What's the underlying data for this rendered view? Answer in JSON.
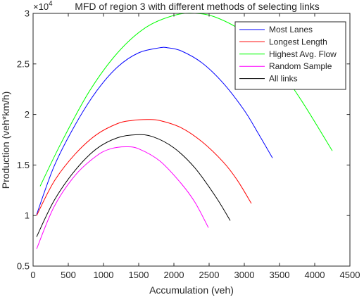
{
  "chart_data": {
    "type": "line",
    "title": "MFD of region 3 with different methods of selecting links",
    "xlabel": "Accumulation (veh)",
    "ylabel": "Production (veh*km/h)",
    "y_multiplier_label": "×10",
    "y_multiplier_exponent": "4",
    "xlim": [
      0,
      4500
    ],
    "ylim": [
      0.5,
      3
    ],
    "xticks": [
      0,
      500,
      1000,
      1500,
      2000,
      2500,
      3000,
      3500,
      4000,
      4500
    ],
    "yticks": [
      0.5,
      1,
      1.5,
      2,
      2.5,
      3
    ],
    "xtick_labels": [
      "0",
      "500",
      "1000",
      "1500",
      "2000",
      "2500",
      "3000",
      "3500",
      "4000",
      "4500"
    ],
    "ytick_labels": [
      "0.5",
      "1",
      "1.5",
      "2",
      "2.5",
      "3"
    ],
    "grid": false,
    "legend_position": "top-right",
    "series": [
      {
        "name": "Most Lanes",
        "color": "#0000ff",
        "x": [
          50,
          300,
          600,
          900,
          1200,
          1500,
          1800,
          1910,
          2100,
          2400,
          2700,
          3000,
          3200,
          3400
        ],
        "y": [
          1.01,
          1.49,
          1.9,
          2.23,
          2.47,
          2.61,
          2.66,
          2.66,
          2.63,
          2.51,
          2.31,
          2.04,
          1.81,
          1.57
        ]
      },
      {
        "name": "Longest Length",
        "color": "#ff0000",
        "x": [
          50,
          300,
          600,
          900,
          1200,
          1400,
          1620,
          1800,
          2100,
          2400,
          2700,
          2900,
          3100
        ],
        "y": [
          1.0,
          1.34,
          1.61,
          1.8,
          1.91,
          1.94,
          1.95,
          1.94,
          1.87,
          1.73,
          1.53,
          1.35,
          1.12
        ]
      },
      {
        "name": "Highest Avg. Flow",
        "color": "#00ff00",
        "x": [
          100,
          400,
          800,
          1200,
          1600,
          2000,
          2300,
          2600,
          3000,
          3400,
          3800,
          4250
        ],
        "y": [
          1.29,
          1.72,
          2.23,
          2.61,
          2.86,
          2.98,
          3.0,
          2.96,
          2.81,
          2.54,
          2.15,
          1.64
        ]
      },
      {
        "name": "Random Sample",
        "color": "#ff00ff",
        "x": [
          50,
          300,
          600,
          900,
          1100,
          1320,
          1500,
          1800,
          2100,
          2300,
          2490
        ],
        "y": [
          0.67,
          1.09,
          1.4,
          1.59,
          1.66,
          1.68,
          1.66,
          1.54,
          1.32,
          1.13,
          0.88
        ]
      },
      {
        "name": "All links",
        "color": "#000000",
        "x": [
          50,
          300,
          600,
          900,
          1200,
          1470,
          1700,
          2000,
          2300,
          2600,
          2800
        ],
        "y": [
          0.79,
          1.15,
          1.45,
          1.66,
          1.77,
          1.8,
          1.78,
          1.67,
          1.47,
          1.18,
          0.95
        ]
      }
    ]
  }
}
